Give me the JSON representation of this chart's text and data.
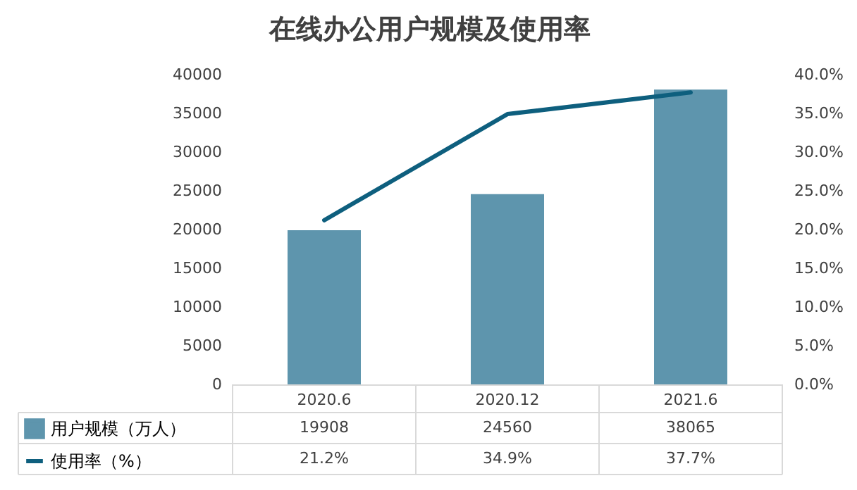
{
  "chart_data": {
    "type": "bar",
    "title": "在线办公用户规模及使用率",
    "categories": [
      "2020.6",
      "2020.12",
      "2021.6"
    ],
    "series": [
      {
        "name": "用户规模（万人）",
        "color": "#5e95ad",
        "values": [
          19908,
          24560,
          38065
        ],
        "value_labels": [
          "19908",
          "24560",
          "38065"
        ]
      },
      {
        "name": "使用率（%）",
        "type": "line",
        "axis": "y2",
        "color": "#0e5f7e",
        "values": [
          21.2,
          34.9,
          37.7
        ],
        "value_labels": [
          "21.2%",
          "34.9%",
          "37.7%"
        ]
      }
    ],
    "ylim": [
      0,
      40000
    ],
    "yticks": [
      0,
      5000,
      10000,
      15000,
      20000,
      25000,
      30000,
      35000,
      40000
    ],
    "y2lim": [
      0,
      40
    ],
    "y2ticks": [
      {
        "value": 0,
        "label": "0.0%"
      },
      {
        "value": 5,
        "label": "5.0%"
      },
      {
        "value": 10,
        "label": "10.0%"
      },
      {
        "value": 15,
        "label": "15.0%"
      },
      {
        "value": 20,
        "label": "20.0%"
      },
      {
        "value": 25,
        "label": "25.0%"
      },
      {
        "value": 30,
        "label": "30.0%"
      },
      {
        "value": 35,
        "label": "35.0%"
      },
      {
        "value": 40,
        "label": "40.0%"
      }
    ],
    "grid": false,
    "legend": "bottom left"
  }
}
